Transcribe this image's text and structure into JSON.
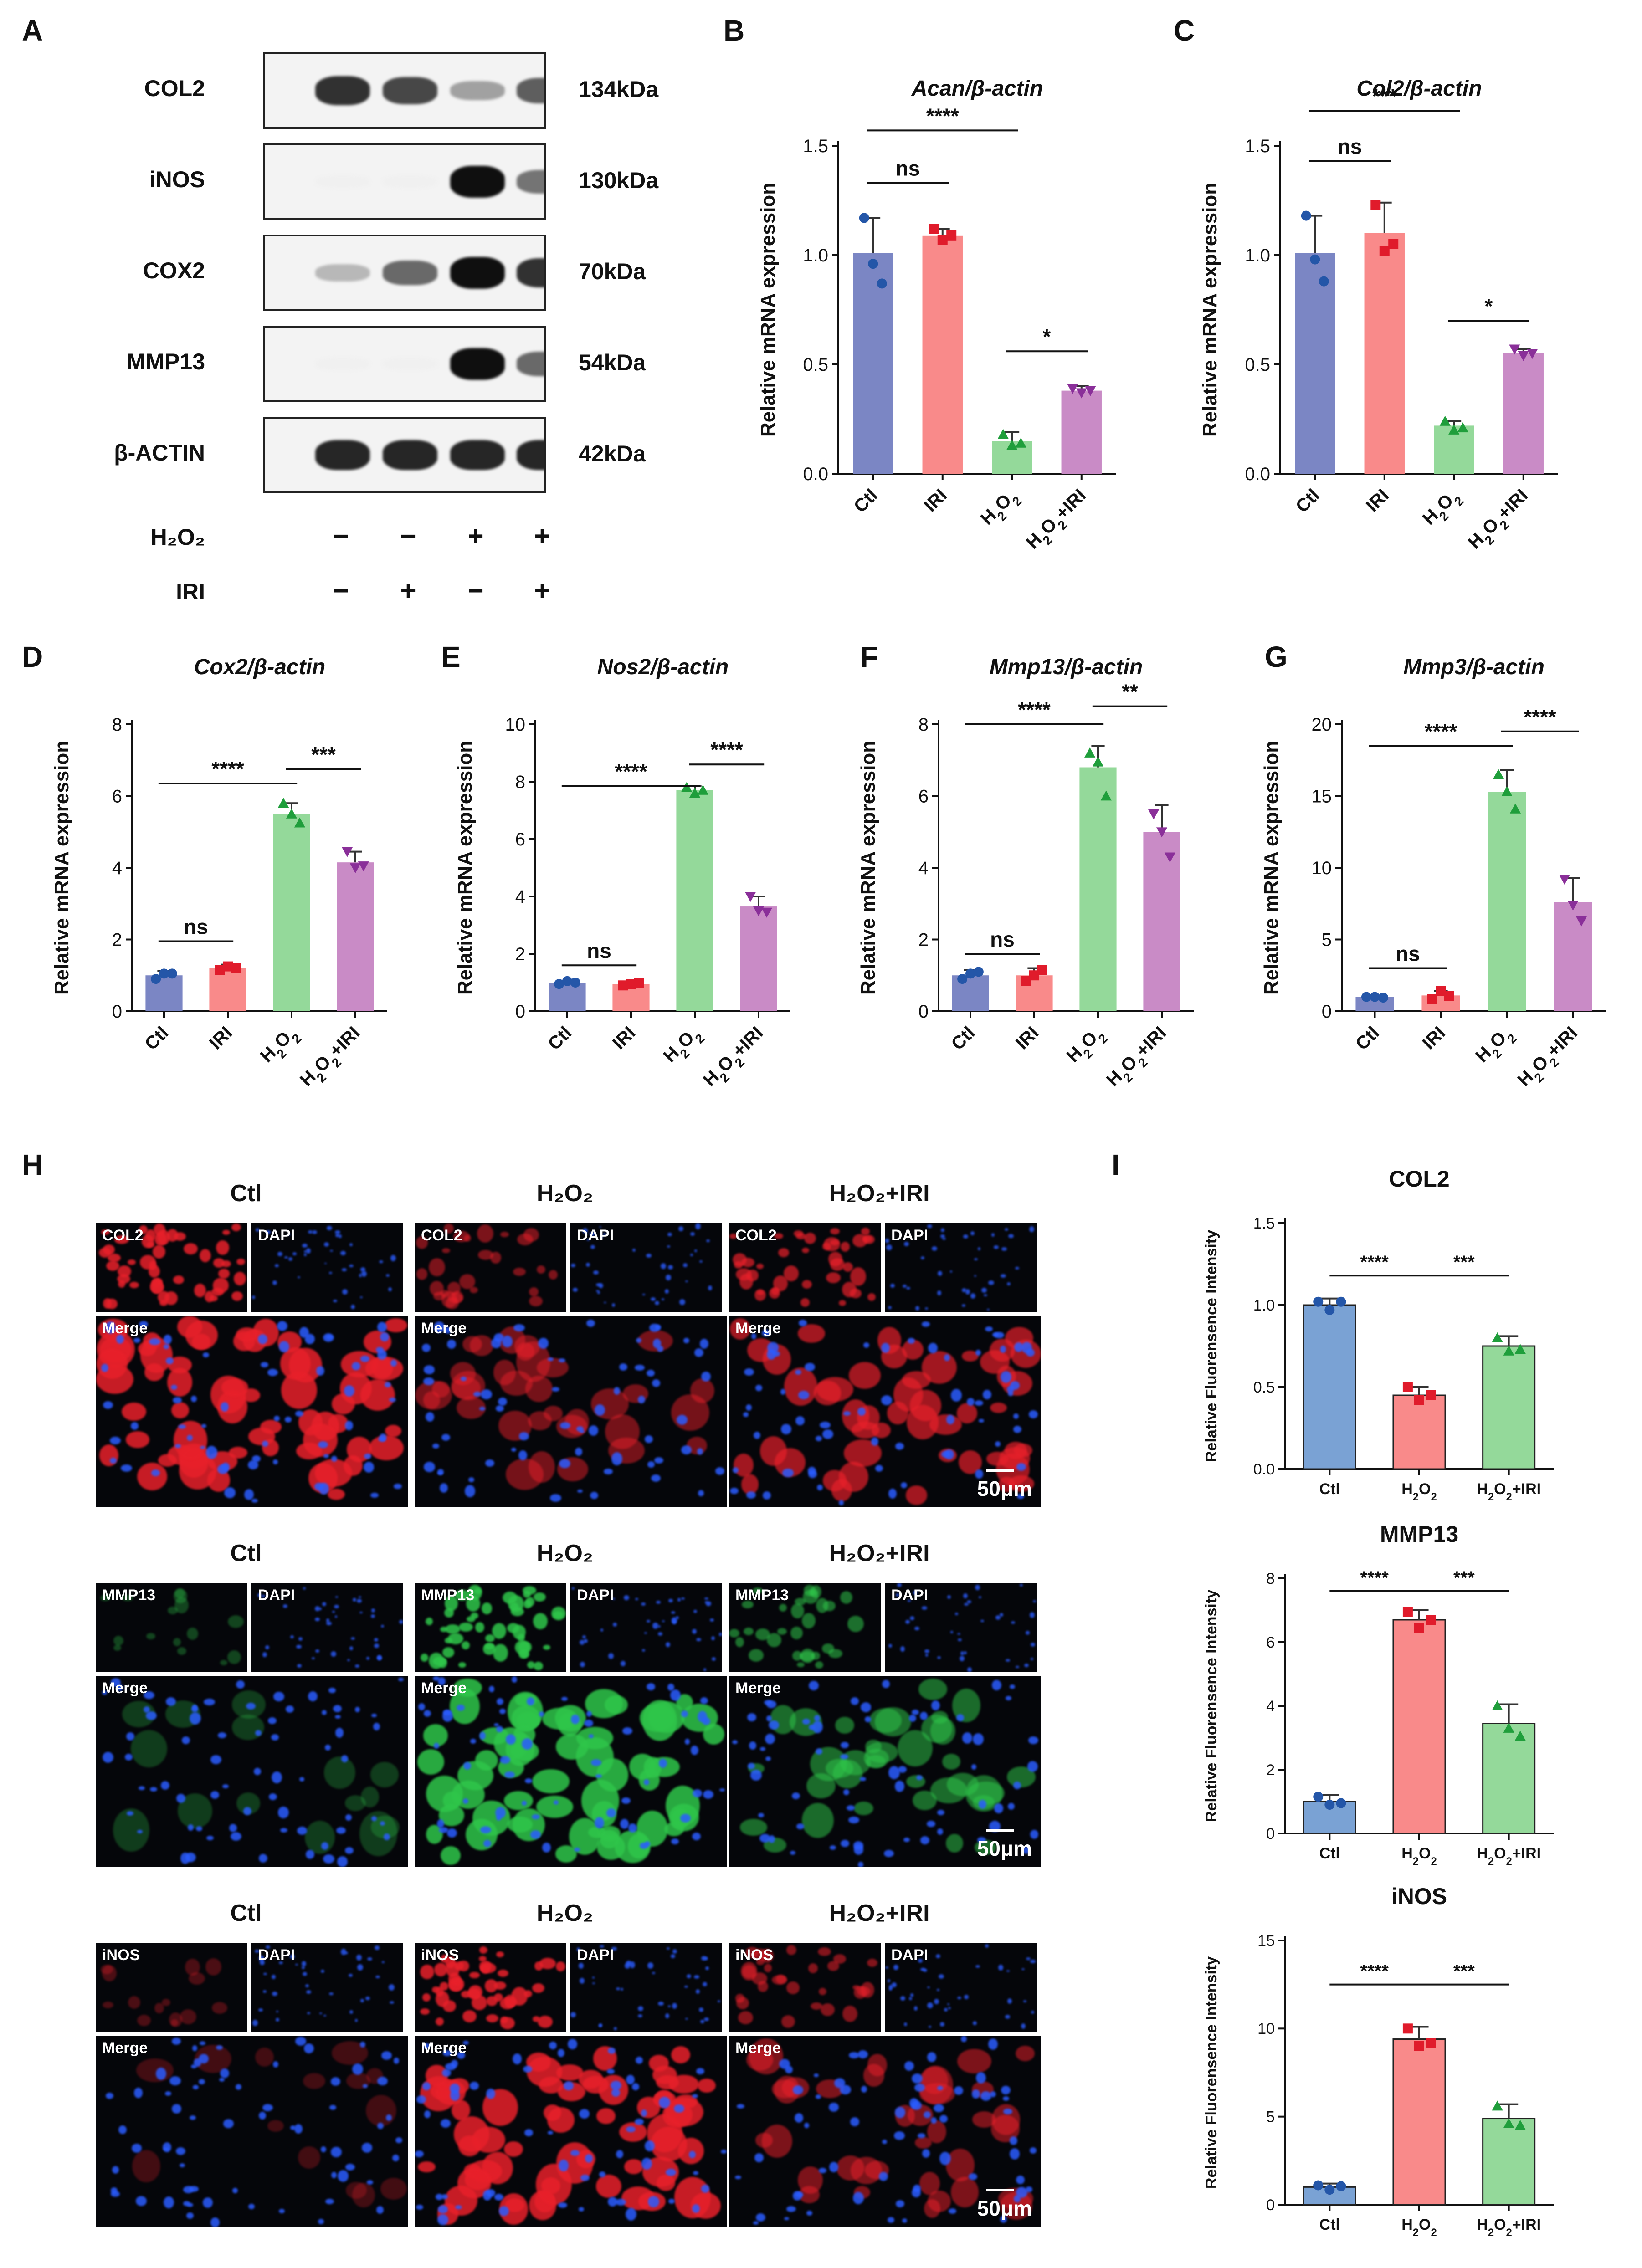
{
  "panels": {
    "A": "A",
    "B": "B",
    "C": "C",
    "D": "D",
    "E": "E",
    "F": "F",
    "G": "G",
    "H": "H",
    "I": "I"
  },
  "western_blot": {
    "rows": [
      {
        "name": "COL2",
        "kda": "134kDa",
        "bands": [
          0.85,
          0.75,
          0.35,
          0.65
        ]
      },
      {
        "name": "iNOS",
        "kda": "130kDa",
        "bands": [
          0.0,
          0.0,
          1.0,
          0.55
        ]
      },
      {
        "name": "COX2",
        "kda": "70kDa",
        "bands": [
          0.25,
          0.6,
          1.0,
          0.85
        ]
      },
      {
        "name": "MMP13",
        "kda": "54kDa",
        "bands": [
          0.0,
          0.0,
          1.0,
          0.6
        ]
      },
      {
        "name": "β-ACTIN",
        "kda": "42kDa",
        "bands": [
          0.9,
          0.9,
          0.9,
          0.9
        ]
      }
    ],
    "treatments": [
      {
        "name": "H₂O₂",
        "symbols": [
          "−",
          "−",
          "+",
          "+"
        ]
      },
      {
        "name": "IRI",
        "symbols": [
          "−",
          "+",
          "−",
          "+"
        ]
      }
    ]
  },
  "chart_data": [
    {
      "panel": "B",
      "type": "bar",
      "title": "Acan/β-actin",
      "ylabel": "Relative mRNA expression",
      "ylim": [
        0,
        1.5
      ],
      "yticks": [
        0.0,
        0.5,
        1.0,
        1.5
      ],
      "categories": [
        "Ctl",
        "IRI",
        "H2O2",
        "H2O2+IRI"
      ],
      "values": [
        1.01,
        1.09,
        0.15,
        0.38
      ],
      "errors": [
        0.16,
        0.03,
        0.04,
        0.02
      ],
      "points": [
        [
          1.17,
          0.96,
          0.87
        ],
        [
          1.12,
          1.07,
          1.09
        ],
        [
          0.18,
          0.13,
          0.14
        ],
        [
          0.39,
          0.37,
          0.38
        ]
      ],
      "colors": [
        "#7b86c4",
        "#f98a8a",
        "#94d99a",
        "#c98bc6"
      ],
      "markers": [
        "circle",
        "square",
        "triangle",
        "tri-down"
      ],
      "marker_colors": [
        "#2456a8",
        "#e01b2b",
        "#1f9e3b",
        "#8a2f99"
      ],
      "significance": [
        {
          "a": 0,
          "b": 1,
          "label": "ns",
          "y": 1.33
        },
        {
          "a": 0,
          "b": 2,
          "label": "****",
          "y": 1.57
        },
        {
          "a": 2,
          "b": 3,
          "label": "*",
          "y": 0.56
        }
      ]
    },
    {
      "panel": "C",
      "type": "bar",
      "title": "Col2/β-actin",
      "ylabel": "Relative mRNA expression",
      "ylim": [
        0,
        1.5
      ],
      "yticks": [
        0.0,
        0.5,
        1.0,
        1.5
      ],
      "categories": [
        "Ctl",
        "IRI",
        "H2O2",
        "H2O2+IRI"
      ],
      "values": [
        1.01,
        1.1,
        0.22,
        0.55
      ],
      "errors": [
        0.17,
        0.14,
        0.02,
        0.02
      ],
      "points": [
        [
          1.18,
          0.98,
          0.88
        ],
        [
          1.23,
          1.02,
          1.05
        ],
        [
          0.24,
          0.2,
          0.21
        ],
        [
          0.57,
          0.54,
          0.55
        ]
      ],
      "colors": [
        "#7b86c4",
        "#f98a8a",
        "#94d99a",
        "#c98bc6"
      ],
      "markers": [
        "circle",
        "square",
        "triangle",
        "tri-down"
      ],
      "marker_colors": [
        "#2456a8",
        "#e01b2b",
        "#1f9e3b",
        "#8a2f99"
      ],
      "significance": [
        {
          "a": 0,
          "b": 1,
          "label": "ns",
          "y": 1.43
        },
        {
          "a": 0,
          "b": 2,
          "label": "***",
          "y": 1.66
        },
        {
          "a": 2,
          "b": 3,
          "label": "*",
          "y": 0.7
        }
      ]
    },
    {
      "panel": "D",
      "type": "bar",
      "title": "Cox2/β-actin",
      "ylabel": "Relative mRNA expression",
      "ylim": [
        0,
        8
      ],
      "yticks": [
        0,
        2,
        4,
        6,
        8
      ],
      "categories": [
        "Ctl",
        "IRI",
        "H2O2",
        "H2O2+IRI"
      ],
      "values": [
        1.0,
        1.2,
        5.5,
        4.15
      ],
      "errors": [
        0.12,
        0.1,
        0.3,
        0.3
      ],
      "points": [
        [
          0.9,
          1.05,
          1.05
        ],
        [
          1.15,
          1.25,
          1.2
        ],
        [
          5.8,
          5.5,
          5.25
        ],
        [
          4.45,
          4.0,
          4.05
        ]
      ],
      "colors": [
        "#7b86c4",
        "#f98a8a",
        "#94d99a",
        "#c98bc6"
      ],
      "markers": [
        "circle",
        "square",
        "triangle",
        "tri-down"
      ],
      "marker_colors": [
        "#2456a8",
        "#e01b2b",
        "#1f9e3b",
        "#8a2f99"
      ],
      "significance": [
        {
          "a": 0,
          "b": 1,
          "label": "ns",
          "y": 1.95
        },
        {
          "a": 0,
          "b": 2,
          "label": "****",
          "y": 6.35
        },
        {
          "a": 2,
          "b": 3,
          "label": "***",
          "y": 6.75
        }
      ]
    },
    {
      "panel": "E",
      "type": "bar",
      "title": "Nos2/β-actin",
      "ylabel": "Relative mRNA expression",
      "ylim": [
        0,
        10
      ],
      "yticks": [
        0,
        2,
        4,
        6,
        8,
        10
      ],
      "categories": [
        "Ctl",
        "IRI",
        "H2O2",
        "H2O2+IRI"
      ],
      "values": [
        1.0,
        0.95,
        7.7,
        3.65
      ],
      "errors": [
        0.05,
        0.05,
        0.15,
        0.35
      ],
      "points": [
        [
          0.95,
          1.05,
          1.0
        ],
        [
          0.9,
          0.95,
          1.0
        ],
        [
          7.8,
          7.6,
          7.7
        ],
        [
          4.0,
          3.5,
          3.45
        ]
      ],
      "colors": [
        "#7b86c4",
        "#f98a8a",
        "#94d99a",
        "#c98bc6"
      ],
      "markers": [
        "circle",
        "square",
        "triangle",
        "tri-down"
      ],
      "marker_colors": [
        "#2456a8",
        "#e01b2b",
        "#1f9e3b",
        "#8a2f99"
      ],
      "significance": [
        {
          "a": 0,
          "b": 1,
          "label": "ns",
          "y": 1.6
        },
        {
          "a": 0,
          "b": 2,
          "label": "****",
          "y": 7.85
        },
        {
          "a": 2,
          "b": 3,
          "label": "****",
          "y": 8.6
        }
      ]
    },
    {
      "panel": "F",
      "type": "bar",
      "title": "Mmp13/β-actin",
      "ylabel": "Relative mRNA expression",
      "ylim": [
        0,
        8
      ],
      "yticks": [
        0,
        2,
        4,
        6,
        8
      ],
      "categories": [
        "Ctl",
        "IRI",
        "H2O2",
        "H2O2+IRI"
      ],
      "values": [
        1.0,
        1.0,
        6.8,
        5.0
      ],
      "errors": [
        0.15,
        0.2,
        0.6,
        0.75
      ],
      "points": [
        [
          0.9,
          1.05,
          1.1
        ],
        [
          0.85,
          1.0,
          1.15
        ],
        [
          7.2,
          6.95,
          6.0
        ],
        [
          5.5,
          5.0,
          4.3
        ]
      ],
      "colors": [
        "#7b86c4",
        "#f98a8a",
        "#94d99a",
        "#c98bc6"
      ],
      "markers": [
        "circle",
        "square",
        "triangle",
        "tri-down"
      ],
      "marker_colors": [
        "#2456a8",
        "#e01b2b",
        "#1f9e3b",
        "#8a2f99"
      ],
      "significance": [
        {
          "a": 0,
          "b": 1,
          "label": "ns",
          "y": 1.6
        },
        {
          "a": 0,
          "b": 2,
          "label": "****",
          "y": 8.0
        },
        {
          "a": 2,
          "b": 3,
          "label": "**",
          "y": 8.5
        }
      ]
    },
    {
      "panel": "G",
      "type": "bar",
      "title": "Mmp3/β-actin",
      "ylabel": "Relative mRNA expression",
      "ylim": [
        0,
        20
      ],
      "yticks": [
        0,
        5,
        10,
        15,
        20
      ],
      "categories": [
        "Ctl",
        "IRI",
        "H2O2",
        "H2O2+IRI"
      ],
      "values": [
        1.0,
        1.1,
        15.3,
        7.6
      ],
      "errors": [
        0.1,
        0.3,
        1.5,
        1.7
      ],
      "points": [
        [
          1.0,
          1.0,
          0.95
        ],
        [
          0.85,
          1.4,
          1.05
        ],
        [
          16.5,
          15.3,
          14.1
        ],
        [
          9.2,
          7.4,
          6.3
        ]
      ],
      "colors": [
        "#7b86c4",
        "#f98a8a",
        "#94d99a",
        "#c98bc6"
      ],
      "markers": [
        "circle",
        "square",
        "triangle",
        "tri-down"
      ],
      "marker_colors": [
        "#2456a8",
        "#e01b2b",
        "#1f9e3b",
        "#8a2f99"
      ],
      "significance": [
        {
          "a": 0,
          "b": 1,
          "label": "ns",
          "y": 3.0
        },
        {
          "a": 0,
          "b": 2,
          "label": "****",
          "y": 18.5
        },
        {
          "a": 2,
          "b": 3,
          "label": "****",
          "y": 19.5
        }
      ]
    },
    {
      "panel": "I",
      "type": "bar",
      "title": "COL2",
      "ylabel": "Relative Fluorensence Intensity",
      "ylim": [
        0,
        1.5
      ],
      "yticks": [
        0.0,
        0.5,
        1.0,
        1.5
      ],
      "categories": [
        "Ctl",
        "H2O2",
        "H2O2+IRI"
      ],
      "values": [
        1.0,
        0.45,
        0.75
      ],
      "errors": [
        0.04,
        0.05,
        0.06
      ],
      "points": [
        [
          1.02,
          0.97,
          1.02
        ],
        [
          0.5,
          0.42,
          0.45
        ],
        [
          0.8,
          0.72,
          0.73
        ]
      ],
      "colors": [
        "#7aa2d4",
        "#f98a8a",
        "#94d99a"
      ],
      "markers": [
        "circle",
        "square",
        "triangle"
      ],
      "marker_colors": [
        "#2456a8",
        "#e01b2b",
        "#1f9e3b"
      ],
      "significance": [
        {
          "a": 0,
          "b": 1,
          "label": "****",
          "y": 1.18
        },
        {
          "a": 1,
          "b": 2,
          "label": "***",
          "y": 1.18
        }
      ]
    },
    {
      "panel": "I",
      "type": "bar",
      "title": "MMP13",
      "ylabel": "Relative Fluorensence Intensity",
      "ylim": [
        0,
        8
      ],
      "yticks": [
        0,
        2,
        4,
        6,
        8
      ],
      "categories": [
        "Ctl",
        "H2O2",
        "H2O2+IRI"
      ],
      "values": [
        1.0,
        6.7,
        3.45
      ],
      "errors": [
        0.2,
        0.3,
        0.6
      ],
      "points": [
        [
          1.15,
          0.9,
          0.95
        ],
        [
          6.95,
          6.45,
          6.7
        ],
        [
          4.0,
          3.3,
          3.05
        ]
      ],
      "colors": [
        "#7aa2d4",
        "#f98a8a",
        "#94d99a"
      ],
      "markers": [
        "circle",
        "square",
        "triangle"
      ],
      "marker_colors": [
        "#2456a8",
        "#e01b2b",
        "#1f9e3b"
      ],
      "significance": [
        {
          "a": 0,
          "b": 1,
          "label": "****",
          "y": 7.6
        },
        {
          "a": 1,
          "b": 2,
          "label": "***",
          "y": 7.6
        }
      ]
    },
    {
      "panel": "I",
      "type": "bar",
      "title": "iNOS",
      "ylabel": "Relative Fluorensence Intensity",
      "ylim": [
        0,
        15
      ],
      "yticks": [
        0,
        5,
        10,
        15
      ],
      "categories": [
        "Ctl",
        "H2O2",
        "H2O2+IRI"
      ],
      "values": [
        1.0,
        9.4,
        4.9
      ],
      "errors": [
        0.2,
        0.7,
        0.8
      ],
      "points": [
        [
          1.1,
          0.85,
          1.05
        ],
        [
          10.0,
          9.0,
          9.2
        ],
        [
          5.6,
          4.6,
          4.5
        ]
      ],
      "colors": [
        "#7aa2d4",
        "#f98a8a",
        "#94d99a"
      ],
      "markers": [
        "circle",
        "square",
        "triangle"
      ],
      "marker_colors": [
        "#2456a8",
        "#e01b2b",
        "#1f9e3b"
      ],
      "significance": [
        {
          "a": 0,
          "b": 1,
          "label": "****",
          "y": 12.5
        },
        {
          "a": 1,
          "b": 2,
          "label": "***",
          "y": 12.5
        }
      ]
    }
  ],
  "if_panels": [
    {
      "columns": [
        "Ctl",
        "H₂O₂",
        "H₂O₂+IRI"
      ],
      "marker": "COL2",
      "counter": "DAPI",
      "merge": "Merge",
      "scale": "50μm",
      "marker_color": "#e8202a",
      "intensity": [
        1.0,
        0.45,
        0.75
      ]
    },
    {
      "columns": [
        "Ctl",
        "H₂O₂",
        "H₂O₂+IRI"
      ],
      "marker": "MMP13",
      "counter": "DAPI",
      "merge": "Merge",
      "scale": "50μm",
      "marker_color": "#2fc64a",
      "intensity": [
        0.12,
        1.0,
        0.5
      ]
    },
    {
      "columns": [
        "Ctl",
        "H₂O₂",
        "H₂O₂+IRI"
      ],
      "marker": "iNOS",
      "counter": "DAPI",
      "merge": "Merge",
      "scale": "50μm",
      "marker_color": "#e8202a",
      "intensity": [
        0.1,
        1.0,
        0.5
      ]
    }
  ]
}
